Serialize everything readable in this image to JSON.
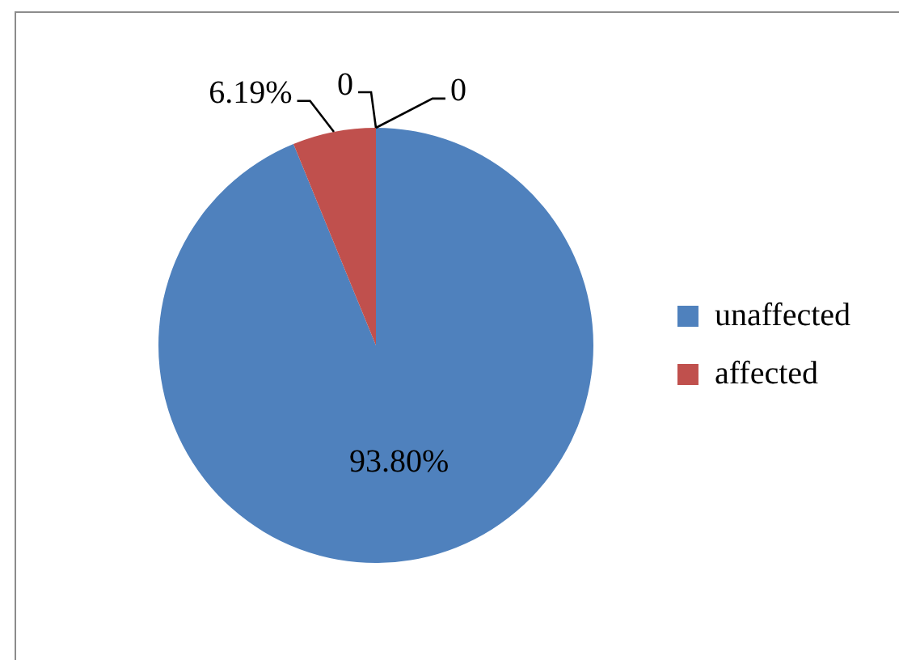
{
  "chart_data": {
    "type": "pie",
    "categories": [
      "unaffected",
      "affected",
      null,
      null
    ],
    "values": [
      93.8,
      6.19,
      0,
      0
    ],
    "colors": [
      "#4f81bd",
      "#c0504d",
      "#9bbb59",
      "#8064a2"
    ],
    "value_labels": [
      "93.80%",
      "6.19%",
      "0",
      "0"
    ],
    "legend": "right"
  }
}
